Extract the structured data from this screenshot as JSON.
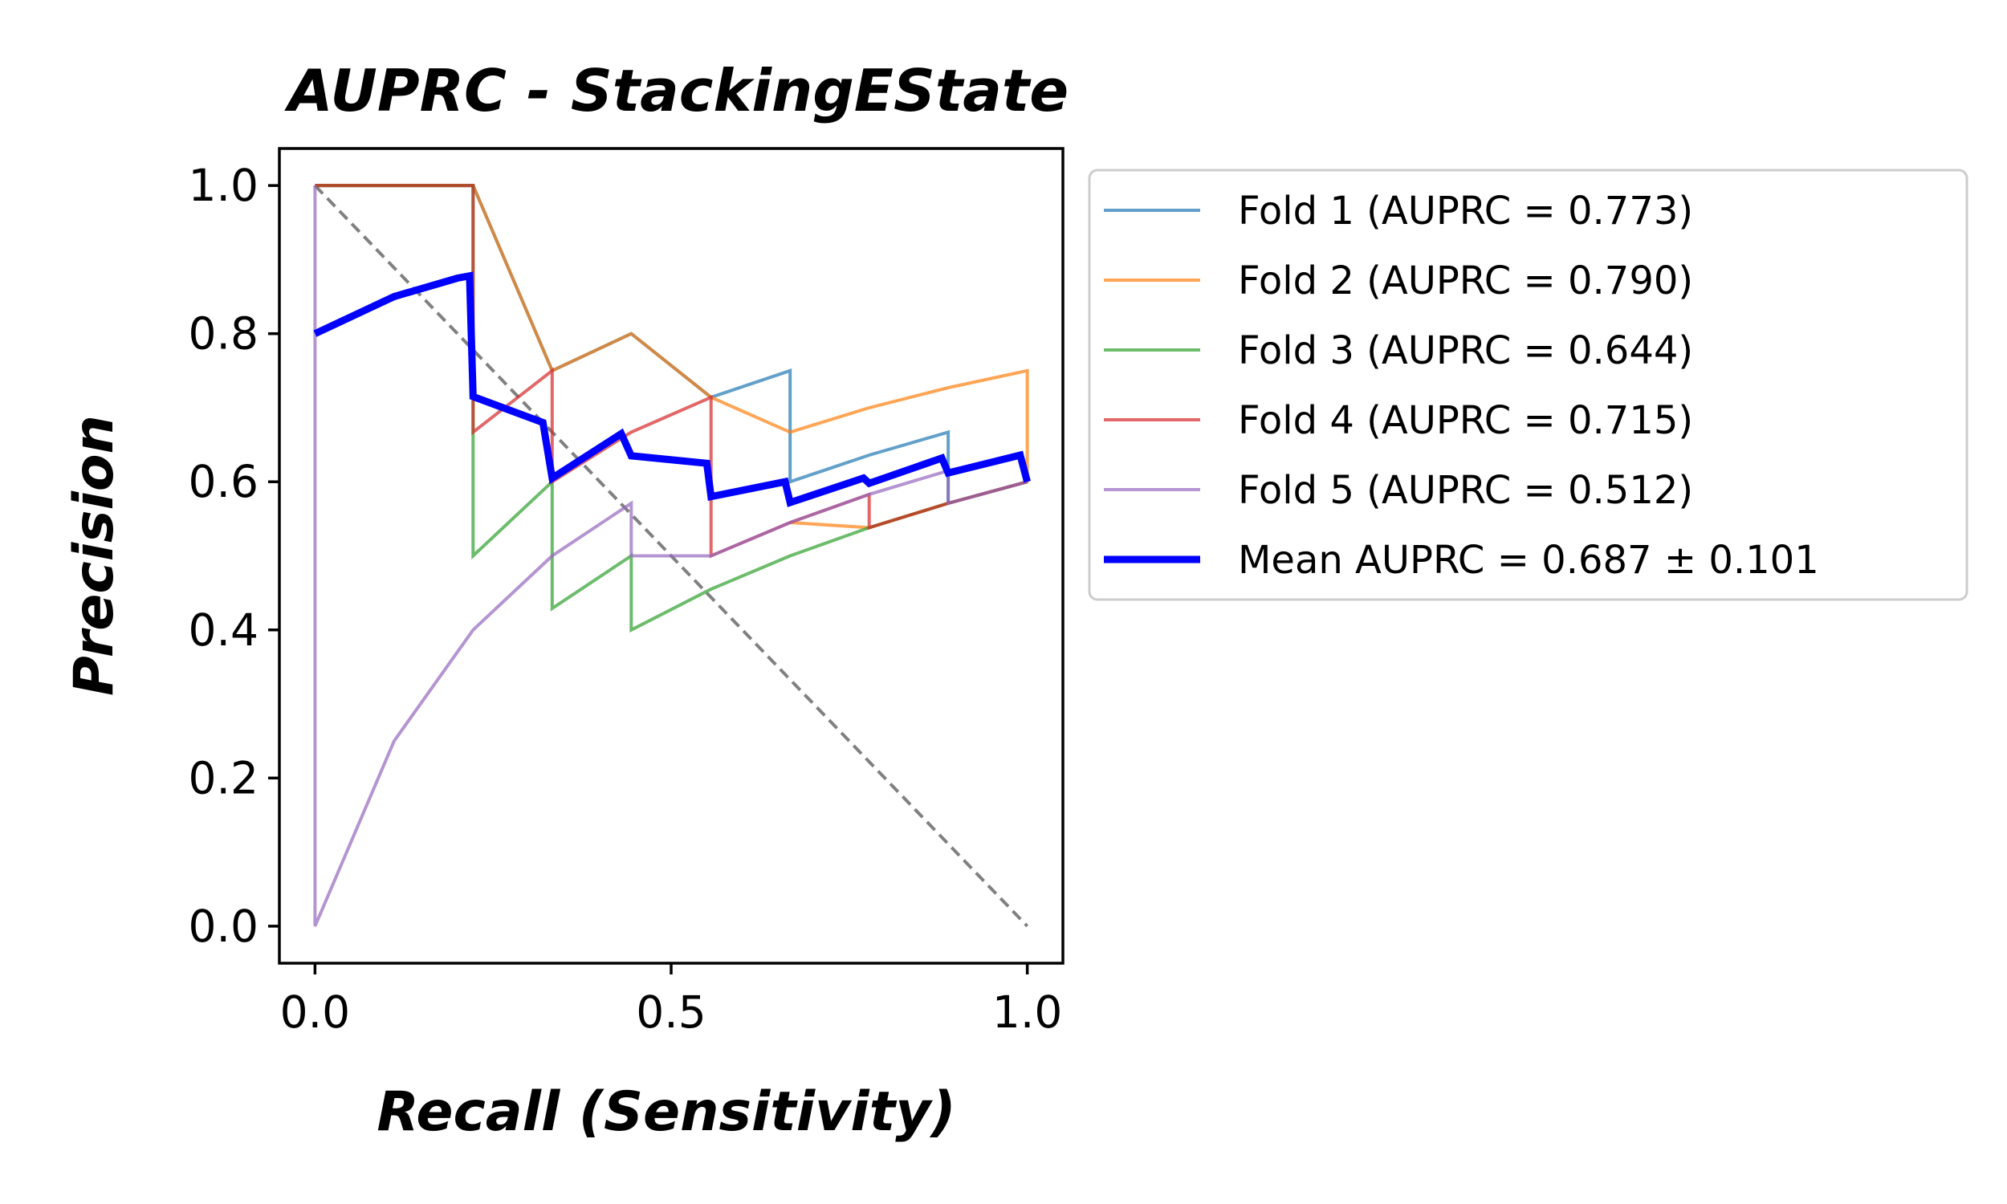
{
  "chart_data": {
    "type": "line",
    "title": "AUPRC - StackingEState",
    "xlabel": "Recall (Sensitivity)",
    "ylabel": "Precision",
    "xlim": [
      -0.05,
      1.05
    ],
    "ylim": [
      -0.05,
      1.05
    ],
    "xticks": [
      "0.0",
      "0.5",
      "1.0"
    ],
    "xtick_values": [
      0.0,
      0.5,
      1.0
    ],
    "yticks": [
      "0.0",
      "0.2",
      "0.4",
      "0.6",
      "0.8",
      "1.0"
    ],
    "ytick_values": [
      0.0,
      0.2,
      0.4,
      0.6,
      0.8,
      1.0
    ],
    "grid": false,
    "legend_position": "outside-right",
    "reference_line": {
      "x": [
        0,
        1
      ],
      "y": [
        1,
        0
      ],
      "color": "#808080",
      "style": "dashed"
    },
    "series": [
      {
        "name": "Fold 1 (AUPRC = 0.773)",
        "color": "#1f77b4",
        "x": [
          0,
          0.222,
          0.222,
          0.333,
          0.444,
          0.556,
          0.667,
          0.667,
          0.778,
          0.889,
          0.889,
          1.0
        ],
        "y": [
          1.0,
          1.0,
          1.0,
          0.75,
          0.8,
          0.714,
          0.75,
          0.6,
          0.636,
          0.667,
          0.571,
          0.6
        ]
      },
      {
        "name": "Fold 2 (AUPRC = 0.790)",
        "color": "#ff7f0e",
        "x": [
          0,
          0.222,
          0.333,
          0.444,
          0.556,
          0.667,
          0.778,
          0.889,
          1.0,
          1.0,
          0.889,
          0.778,
          0.667
        ],
        "y": [
          1.0,
          1.0,
          0.75,
          0.8,
          0.714,
          0.667,
          0.7,
          0.727,
          0.75,
          0.6,
          0.571,
          0.538,
          0.545
        ]
      },
      {
        "name": "Fold 3 (AUPRC = 0.644)",
        "color": "#2ca02c",
        "x": [
          0,
          0.222,
          0.222,
          0.222,
          0.333,
          0.333,
          0.333,
          0.444,
          0.444,
          0.444,
          0.556,
          0.667,
          0.778,
          0.889,
          1.0
        ],
        "y": [
          1.0,
          1.0,
          0.667,
          0.5,
          0.6,
          0.6,
          0.429,
          0.5,
          0.5,
          0.4,
          0.455,
          0.5,
          0.538,
          0.571,
          0.6
        ]
      },
      {
        "name": "Fold 4 (AUPRC = 0.715)",
        "color": "#d62728",
        "x": [
          0,
          0.222,
          0.222,
          0.333,
          0.333,
          0.444,
          0.556,
          0.556,
          0.667,
          0.778,
          0.778,
          0.889,
          1.0
        ],
        "y": [
          1.0,
          1.0,
          0.667,
          0.75,
          0.6,
          0.667,
          0.714,
          0.5,
          0.545,
          0.583,
          0.538,
          0.571,
          0.6
        ]
      },
      {
        "name": "Fold 5 (AUPRC = 0.512)",
        "color": "#9467bd",
        "x": [
          0,
          0,
          0.111,
          0.222,
          0.333,
          0.444,
          0.444,
          0.556,
          0.667,
          0.778,
          0.889,
          0.889,
          1.0
        ],
        "y": [
          1.0,
          0.0,
          0.25,
          0.4,
          0.5,
          0.571,
          0.5,
          0.5,
          0.545,
          0.583,
          0.615,
          0.571,
          0.6
        ]
      },
      {
        "name": "Mean AUPRC = 0.687 ± 0.101",
        "color": "#0000ff",
        "x": [
          0,
          0.111,
          0.2,
          0.217,
          0.222,
          0.32,
          0.333,
          0.43,
          0.444,
          0.55,
          0.556,
          0.66,
          0.667,
          0.77,
          0.778,
          0.88,
          0.889,
          0.99,
          1.0
        ],
        "y": [
          0.8,
          0.85,
          0.875,
          0.878,
          0.715,
          0.68,
          0.605,
          0.665,
          0.635,
          0.625,
          0.58,
          0.6,
          0.572,
          0.605,
          0.598,
          0.632,
          0.612,
          0.636,
          0.6
        ]
      }
    ]
  }
}
